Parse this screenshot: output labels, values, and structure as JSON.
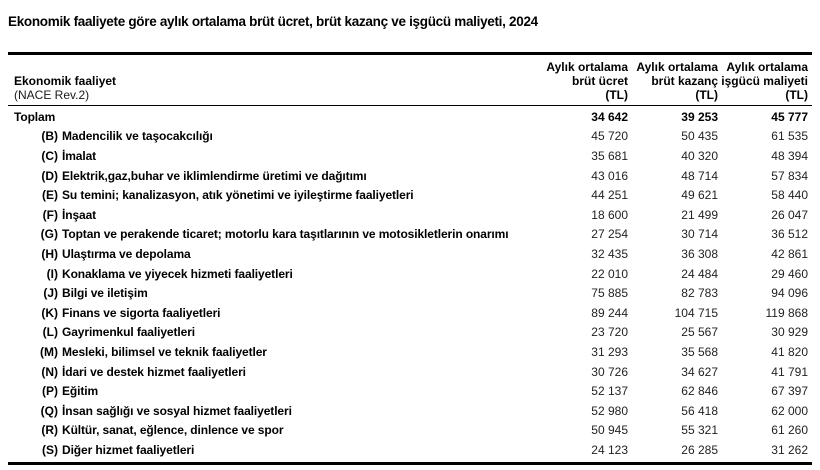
{
  "page": {
    "title": "Ekonomik faaliyete göre aylık ortalama brüt ücret, brüt kazanç ve işgücü maliyeti, 2024"
  },
  "table": {
    "row_header": {
      "line1": "Ekonomik faaliyet",
      "line2": "(NACE Rev.2)"
    },
    "columns": [
      {
        "line1": "Aylık ortalama",
        "line2": "brüt ücret",
        "line3": "(TL)"
      },
      {
        "line1": "Aylık ortalama",
        "line2": "brüt kazanç",
        "line3": "(TL)"
      },
      {
        "line1": "Aylık ortalama",
        "line2": "işgücü maliyeti",
        "line3": "(TL)"
      }
    ],
    "rows": [
      {
        "code": "",
        "label": "Toplam",
        "values": [
          "34 642",
          "39 253",
          "45 777"
        ],
        "bold": true
      },
      {
        "code": "(B)",
        "label": "Madencilik ve taşocakcılığı",
        "values": [
          "45 720",
          "50 435",
          "61 535"
        ],
        "bold": false
      },
      {
        "code": "(C)",
        "label": "İmalat",
        "values": [
          "35 681",
          "40 320",
          "48 394"
        ],
        "bold": false
      },
      {
        "code": "(D)",
        "label": "Elektrik,gaz,buhar ve iklimlendirme üretimi ve dağıtımı",
        "values": [
          "43 016",
          "48 714",
          "57 834"
        ],
        "bold": false
      },
      {
        "code": "(E)",
        "label": "Su temini; kanalizasyon, atık yönetimi ve iyileştirme faaliyetleri",
        "values": [
          "44 251",
          "49 621",
          "58 440"
        ],
        "bold": false
      },
      {
        "code": "(F)",
        "label": "İnşaat",
        "values": [
          "18 600",
          "21 499",
          "26 047"
        ],
        "bold": false
      },
      {
        "code": "(G)",
        "label": "Toptan ve perakende ticaret; motorlu kara taşıtlarının ve motosikletlerin onarımı",
        "values": [
          "27 254",
          "30 714",
          "36 512"
        ],
        "bold": false
      },
      {
        "code": "(H)",
        "label": "Ulaştırma ve depolama",
        "values": [
          "32 435",
          "36 308",
          "42 861"
        ],
        "bold": false
      },
      {
        "code": "(I)",
        "label": "Konaklama ve yiyecek hizmeti faaliyetleri",
        "values": [
          "22 010",
          "24 484",
          "29 460"
        ],
        "bold": false
      },
      {
        "code": "(J)",
        "label": "Bilgi ve iletişim",
        "values": [
          "75 885",
          "82 783",
          "94 096"
        ],
        "bold": false
      },
      {
        "code": "(K)",
        "label": "Finans ve sigorta faaliyetleri",
        "values": [
          "89 244",
          "104 715",
          "119 868"
        ],
        "bold": false
      },
      {
        "code": "(L)",
        "label": "Gayrimenkul faaliyetleri",
        "values": [
          "23 720",
          "25 567",
          "30 929"
        ],
        "bold": false
      },
      {
        "code": "(M)",
        "label": "Mesleki, bilimsel ve teknik faaliyetler",
        "values": [
          "31 293",
          "35 568",
          "41 820"
        ],
        "bold": false
      },
      {
        "code": "(N)",
        "label": "İdari ve destek hizmet faaliyetleri",
        "values": [
          "30 726",
          "34 627",
          "41 791"
        ],
        "bold": false
      },
      {
        "code": "(P)",
        "label": "Eğitim",
        "values": [
          "52 137",
          "62 846",
          "67 397"
        ],
        "bold": false
      },
      {
        "code": "(Q)",
        "label": "İnsan sağlığı ve sosyal hizmet faaliyetleri",
        "values": [
          "52 980",
          "56 418",
          "62 000"
        ],
        "bold": false
      },
      {
        "code": "(R)",
        "label": "Kültür, sanat, eğlence, dinlence ve spor",
        "values": [
          "50 945",
          "55 321",
          "61 260"
        ],
        "bold": false
      },
      {
        "code": "(S)",
        "label": "Diğer hizmet faaliyetleri",
        "values": [
          "24 123",
          "26 285",
          "31 262"
        ],
        "bold": false
      }
    ]
  },
  "colors": {
    "text": "#000000",
    "value_text": "#222222",
    "border": "#000000",
    "background": "#ffffff"
  }
}
